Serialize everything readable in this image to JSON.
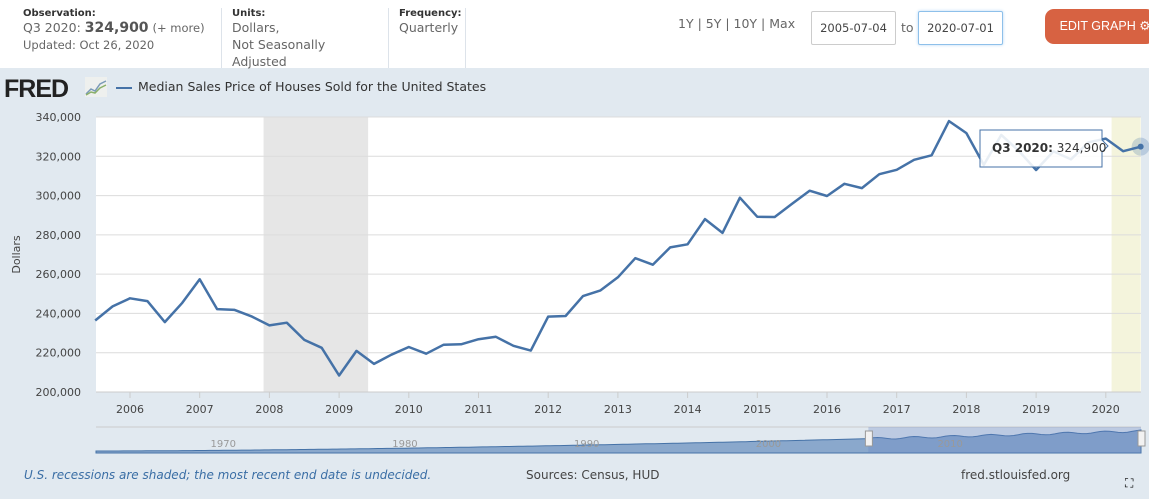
{
  "header": {
    "observation_label": "Observation:",
    "observation_period": "Q3 2020:",
    "observation_value": "324,900",
    "more_link": "(+ more)",
    "updated": "Updated: Oct 26, 2020",
    "units_label": "Units:",
    "units_line1": "Dollars,",
    "units_line2": "Not Seasonally Adjusted",
    "frequency_label": "Frequency:",
    "frequency_value": "Quarterly",
    "ranges": [
      "1Y",
      "5Y",
      "10Y",
      "Max"
    ],
    "date_from": "2005-07-04",
    "to_label": "to",
    "date_to": "2020-07-01",
    "edit_button": "EDIT GRAPH",
    "edit_color": "#d76242"
  },
  "logo": "FRED",
  "footer": {
    "note": "U.S. recessions are shaded; the most recent end date is undecided.",
    "sources": "Sources: Census, HUD",
    "site": "fred.stlouisfed.org"
  },
  "tooltip": {
    "period": "Q3 2020:",
    "value": "324,900"
  },
  "chart_data": {
    "type": "line",
    "title": "",
    "legend": [
      "Median Sales Price of Houses Sold for the United States"
    ],
    "ylabel": "Dollars",
    "xlabel": "",
    "ylim": [
      200000,
      340000
    ],
    "yticks": [
      "200,000",
      "220,000",
      "240,000",
      "260,000",
      "280,000",
      "300,000",
      "320,000",
      "340,000"
    ],
    "xticks": [
      "2006",
      "2007",
      "2008",
      "2009",
      "2010",
      "2011",
      "2012",
      "2013",
      "2014",
      "2015",
      "2016",
      "2017",
      "2018",
      "2019",
      "2020"
    ],
    "grid": true,
    "line_color": "#4572a7",
    "recessions": [
      [
        "2007-12-01",
        "2009-06-01"
      ],
      [
        "2020-02-01",
        "2020-07-01"
      ]
    ],
    "navigator_ticks": [
      "1970",
      "1980",
      "1990",
      "2000",
      "2010"
    ],
    "series": [
      {
        "name": "Median Sales Price of Houses Sold for the United States",
        "start": "2005-Q3",
        "values": [
          236400,
          243600,
          247700,
          246300,
          235600,
          245400,
          257400,
          242200,
          241800,
          238400,
          233900,
          235300,
          226500,
          222500,
          208400,
          220900,
          214300,
          219000,
          222900,
          219500,
          224100,
          224300,
          226900,
          228100,
          223500,
          221100,
          238400,
          238700,
          248800,
          251700,
          258400,
          268100,
          264800,
          273600,
          275200,
          288000,
          281000,
          298900,
          289200,
          289100,
          295800,
          302500,
          299800,
          306000,
          303800,
          310900,
          313100,
          318200,
          320500,
          337900,
          331800,
          315600,
          330900,
          322800,
          313000,
          322500,
          318400,
          327100,
          329000,
          322600,
          324900
        ]
      }
    ]
  }
}
